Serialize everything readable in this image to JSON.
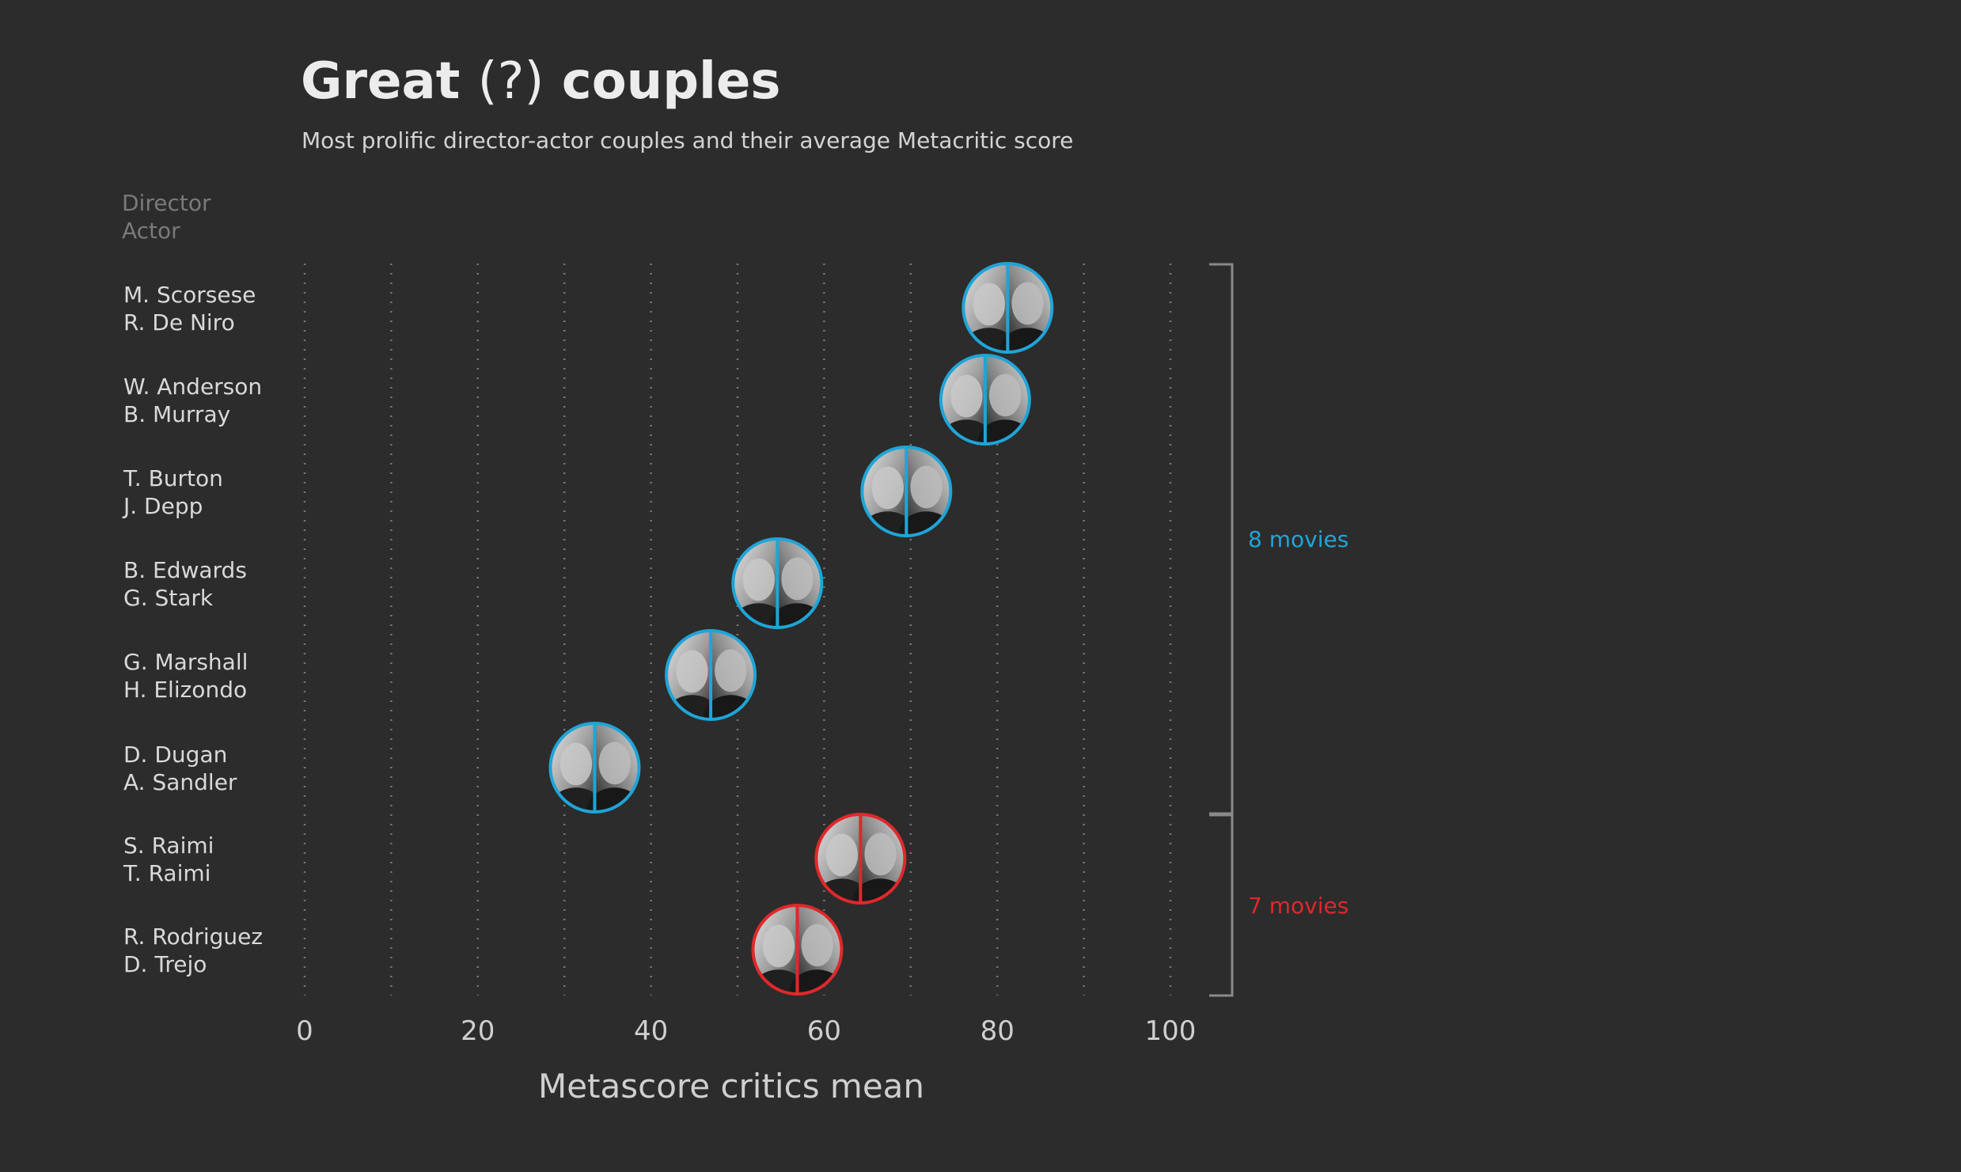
{
  "title": {
    "part1": "Great",
    "part2": "(?)",
    "part3": "couples"
  },
  "subtitle": "Most prolific director-actor couples and their average Metacritic score",
  "header": {
    "director": "Director",
    "actor": "Actor"
  },
  "colors": {
    "background": "#2c2c2c",
    "eight_movies": "#1fa5d8",
    "seven_movies": "#e0282b"
  },
  "chart_data": {
    "type": "scatter",
    "xlabel": "Metascore critics mean",
    "xlim": [
      0,
      100
    ],
    "xticks": [
      "0",
      "20",
      "40",
      "60",
      "80",
      "100"
    ],
    "grid_x": [
      0,
      10,
      20,
      30,
      40,
      50,
      60,
      70,
      80,
      90,
      100
    ],
    "points": [
      {
        "director": "M. Scorsese",
        "actor": "R. De Niro",
        "x": 81.2,
        "group": 0
      },
      {
        "director": "W. Anderson",
        "actor": "B. Murray",
        "x": 78.6,
        "group": 0
      },
      {
        "director": "T. Burton",
        "actor": "J. Depp",
        "x": 69.5,
        "group": 0
      },
      {
        "director": "B. Edwards",
        "actor": "G. Stark",
        "x": 54.6,
        "group": 0
      },
      {
        "director": "G. Marshall",
        "actor": "H. Elizondo",
        "x": 46.9,
        "group": 0
      },
      {
        "director": "D. Dugan",
        "actor": "A. Sandler",
        "x": 33.5,
        "group": 0
      },
      {
        "director": "S. Raimi",
        "actor": "T. Raimi",
        "x": 64.2,
        "group": 1
      },
      {
        "director": "R. Rodriguez",
        "actor": "D. Trejo",
        "x": 56.9,
        "group": 1
      }
    ],
    "groups": [
      {
        "label": "8 movies",
        "color": "#1fa5d8"
      },
      {
        "label": "7 movies",
        "color": "#e0282b"
      }
    ]
  }
}
